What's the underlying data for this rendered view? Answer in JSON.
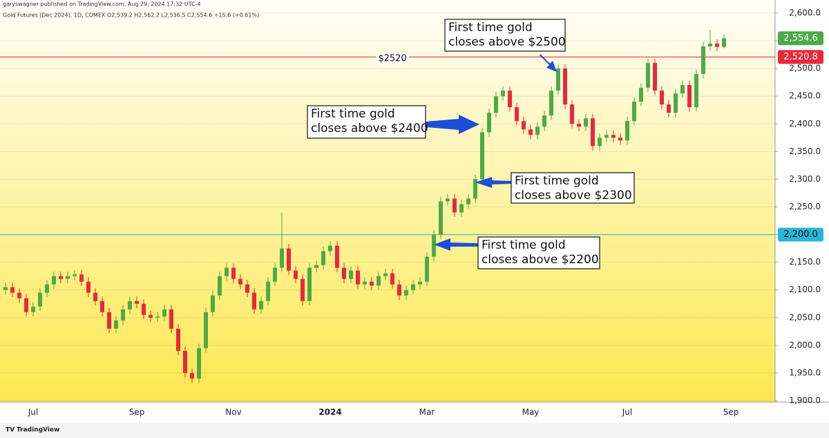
{
  "chart_data": {
    "type": "candlestick",
    "attribution": "garyswagner published on TradingView.com, Aug 29, 2024 17:32 UTC-4",
    "symbol_info": "Gold Futures (Dec 2024), 1D, COMEX  O2,539.2  H2,562.2  L2,536.5  C2,554.6  +15.6 (+0.61%)",
    "footer": "TradingView",
    "line_note": "$2520",
    "up_color": "#4caa48",
    "down_color": "#e8283c",
    "grid": true,
    "ylim": [
      1897.5,
      2623.7
    ],
    "yticks": [
      {
        "value": 1900,
        "label": "1,900.0"
      },
      {
        "value": 1950,
        "label": "1,950.0"
      },
      {
        "value": 2000,
        "label": "2,000.0"
      },
      {
        "value": 2050,
        "label": "2,050.0"
      },
      {
        "value": 2100,
        "label": "2,100.0"
      },
      {
        "value": 2150,
        "label": "2,150.0"
      },
      {
        "value": 2200,
        "label": "2,200.0"
      },
      {
        "value": 2250,
        "label": "2,250.0"
      },
      {
        "value": 2300,
        "label": "2,300.0"
      },
      {
        "value": 2350,
        "label": "2,350.0"
      },
      {
        "value": 2400,
        "label": "2,400.0"
      },
      {
        "value": 2450,
        "label": "2,450.0"
      },
      {
        "value": 2500,
        "label": "2,500.0"
      },
      {
        "value": 2550,
        "label": "2,550.0"
      },
      {
        "value": 2600,
        "label": "2,600.0"
      }
    ],
    "categories": [
      null,
      null,
      null,
      null,
      "Jul",
      null,
      null,
      null,
      null,
      null,
      null,
      null,
      null,
      null,
      null,
      null,
      null,
      null,
      null,
      "Sep",
      null,
      null,
      null,
      null,
      null,
      null,
      null,
      null,
      null,
      null,
      null,
      null,
      null,
      "Nov",
      null,
      null,
      null,
      null,
      null,
      null,
      null,
      null,
      null,
      null,
      null,
      null,
      null,
      "2024",
      null,
      null,
      null,
      null,
      null,
      null,
      null,
      null,
      null,
      null,
      null,
      null,
      null,
      "Mar",
      null,
      null,
      null,
      null,
      null,
      null,
      null,
      null,
      null,
      null,
      null,
      null,
      null,
      null,
      "May",
      null,
      null,
      null,
      null,
      null,
      null,
      null,
      null,
      null,
      null,
      null,
      null,
      null,
      "Jul",
      null,
      null,
      null,
      null,
      null,
      null,
      null,
      null,
      null,
      null,
      null,
      null,
      null,
      null,
      "Sep"
    ],
    "open": [
      2100,
      2105,
      2095,
      2085,
      2060,
      2070,
      2095,
      2110,
      2125,
      2120,
      2125,
      2128,
      2115,
      2095,
      2080,
      2060,
      2030,
      2045,
      2065,
      2080,
      2075,
      2055,
      2050,
      2052,
      2065,
      2030,
      1990,
      1950,
      1940,
      1995,
      2060,
      2090,
      2125,
      2140,
      2120,
      2110,
      2095,
      2065,
      2080,
      2115,
      2140,
      2175,
      2135,
      2120,
      2080,
      2140,
      2145,
      2170,
      2180,
      2140,
      2120,
      2135,
      2110,
      2115,
      2108,
      2125,
      2130,
      2110,
      2090,
      2100,
      2110,
      2115,
      2160,
      2200,
      2260,
      2265,
      2240,
      2255,
      2265,
      2300,
      2385,
      2420,
      2450,
      2460,
      2430,
      2405,
      2390,
      2380,
      2395,
      2415,
      2460,
      2500,
      2435,
      2400,
      2395,
      2410,
      2360,
      2375,
      2380,
      2375,
      2370,
      2405,
      2440,
      2465,
      2510,
      2460,
      2435,
      2420,
      2455,
      2470,
      2430,
      2490,
      2540,
      2545,
      2539.2,
      null
    ],
    "high": [
      2113,
      2113,
      2103,
      2093,
      2078,
      2103,
      2118,
      2133,
      2133,
      2133,
      2136,
      2136,
      2123,
      2103,
      2088,
      2068,
      2053,
      2073,
      2088,
      2088,
      2083,
      2063,
      2060,
      2073,
      2073,
      2038,
      1998,
      1958,
      2003,
      2068,
      2098,
      2133,
      2148,
      2148,
      2128,
      2118,
      2103,
      2088,
      2123,
      2148,
      2240,
      2183,
      2143,
      2128,
      2148,
      2153,
      2178,
      2188,
      2188,
      2148,
      2143,
      2143,
      2123,
      2123,
      2133,
      2138,
      2138,
      2118,
      2108,
      2118,
      2123,
      2168,
      2208,
      2268,
      2273,
      2273,
      2263,
      2273,
      2308,
      2393,
      2428,
      2458,
      2468,
      2468,
      2438,
      2413,
      2398,
      2403,
      2423,
      2468,
      2508,
      2508,
      2443,
      2408,
      2418,
      2418,
      2383,
      2388,
      2388,
      2383,
      2413,
      2448,
      2473,
      2518,
      2518,
      2468,
      2443,
      2463,
      2478,
      2478,
      2498,
      2548,
      2570,
      2553,
      2562.2,
      null
    ],
    "low": [
      2092,
      2087,
      2077,
      2052,
      2052,
      2062,
      2087,
      2102,
      2112,
      2112,
      2117,
      2107,
      2087,
      2072,
      2052,
      2022,
      2022,
      2037,
      2057,
      2067,
      2047,
      2042,
      2042,
      2044,
      2022,
      1982,
      1942,
      1932,
      1932,
      1987,
      2052,
      2082,
      2117,
      2112,
      2102,
      2087,
      2057,
      2057,
      2072,
      2107,
      2132,
      2127,
      2112,
      2072,
      2072,
      2132,
      2137,
      2162,
      2132,
      2112,
      2112,
      2102,
      2102,
      2100,
      2100,
      2117,
      2102,
      2082,
      2082,
      2092,
      2102,
      2107,
      2152,
      2192,
      2252,
      2232,
      2232,
      2247,
      2257,
      2292,
      2377,
      2412,
      2442,
      2422,
      2397,
      2382,
      2372,
      2372,
      2387,
      2407,
      2452,
      2427,
      2392,
      2387,
      2387,
      2352,
      2352,
      2367,
      2367,
      2362,
      2362,
      2397,
      2432,
      2457,
      2452,
      2427,
      2412,
      2412,
      2447,
      2422,
      2422,
      2482,
      2532,
      2531,
      2536.5,
      null
    ],
    "close": [
      2105,
      2095,
      2085,
      2060,
      2070,
      2095,
      2110,
      2125,
      2120,
      2125,
      2128,
      2115,
      2095,
      2080,
      2060,
      2030,
      2045,
      2065,
      2080,
      2075,
      2055,
      2050,
      2052,
      2065,
      2030,
      1990,
      1950,
      1940,
      1995,
      2060,
      2090,
      2125,
      2140,
      2120,
      2110,
      2095,
      2065,
      2080,
      2115,
      2140,
      2175,
      2135,
      2120,
      2080,
      2140,
      2145,
      2170,
      2180,
      2140,
      2120,
      2135,
      2110,
      2115,
      2108,
      2125,
      2130,
      2110,
      2090,
      2100,
      2110,
      2115,
      2160,
      2200,
      2260,
      2265,
      2240,
      2255,
      2265,
      2300,
      2385,
      2420,
      2450,
      2460,
      2430,
      2405,
      2390,
      2380,
      2395,
      2415,
      2460,
      2500,
      2435,
      2400,
      2395,
      2410,
      2360,
      2375,
      2380,
      2375,
      2370,
      2405,
      2440,
      2465,
      2510,
      2460,
      2435,
      2420,
      2455,
      2470,
      2430,
      2490,
      2540,
      2545,
      2539,
      2554.6,
      null
    ],
    "price_lines": [
      {
        "value": 2520.8,
        "label": "2,520.8",
        "color": "#e8283c"
      },
      {
        "value": 2200,
        "label": "2,200.0",
        "color": "#29b6d8"
      }
    ],
    "last_price": {
      "value": 2554.6,
      "label": "2,554.6",
      "color": "#4caa48"
    },
    "annotations": [
      {
        "lines": [
          "First time gold",
          "closes above $2500"
        ]
      },
      {
        "lines": [
          "First time gold",
          "closes above $2400"
        ]
      },
      {
        "lines": [
          "First time gold",
          "closes above $2300"
        ]
      },
      {
        "lines": [
          "First time gold",
          "closes above $2200"
        ]
      }
    ]
  }
}
